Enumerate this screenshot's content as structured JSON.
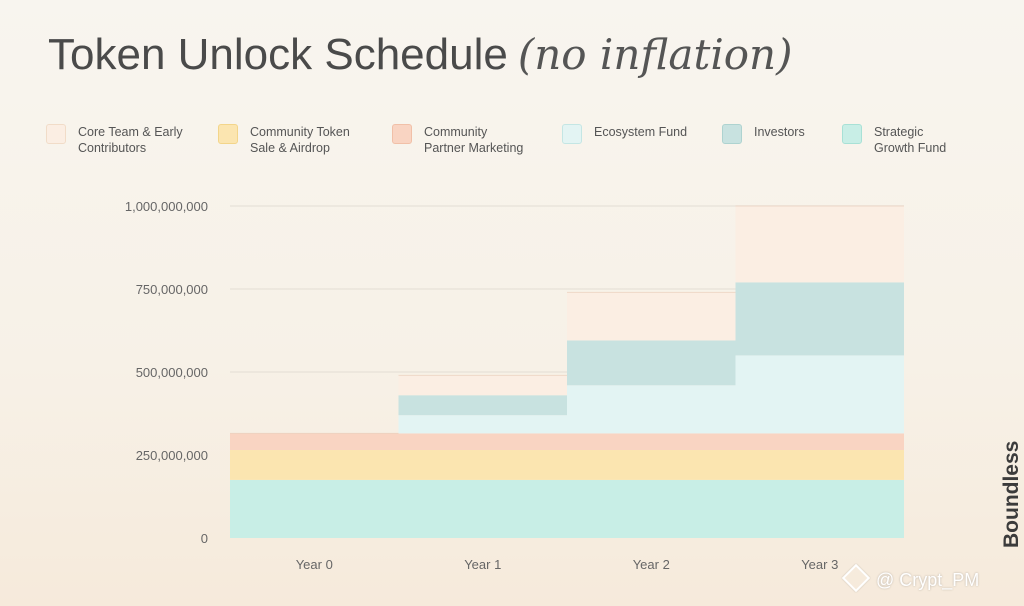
{
  "title": {
    "main": "Token Unlock Schedule",
    "sub": "(no inflation)"
  },
  "legend": [
    {
      "label": "Core Team & Early\nContributors",
      "color": "#fbeee3",
      "border": "#f1dcc8"
    },
    {
      "label": "Community Token\nSale & Airdrop",
      "color": "#fbe5b0",
      "border": "#f3d58a"
    },
    {
      "label": "Community\nPartner Marketing",
      "color": "#f9d4c2",
      "border": "#f1c0a8"
    },
    {
      "label": "Ecosystem Fund",
      "color": "#e3f4f3",
      "border": "#c4e6e4"
    },
    {
      "label": "Investors",
      "color": "#c8e2e0",
      "border": "#aed3d0"
    },
    {
      "label": "Strategic\nGrowth Fund",
      "color": "#c8eee6",
      "border": "#a8e1d6"
    }
  ],
  "chart_data": {
    "type": "area",
    "stacked": true,
    "step": true,
    "categories": [
      "Year 0",
      "Year 1",
      "Year 2",
      "Year 3"
    ],
    "ylim": [
      0,
      1000000000
    ],
    "yticks": [
      0,
      250000000,
      500000000,
      750000000,
      1000000000
    ],
    "ytick_labels": [
      "0",
      "250,000,000",
      "500,000,000",
      "750,000,000",
      "1,000,000,000"
    ],
    "series": [
      {
        "name": "Strategic Growth Fund",
        "color": "#c8eee6",
        "values": [
          175000000,
          175000000,
          175000000,
          175000000
        ]
      },
      {
        "name": "Community Token Sale & Airdrop",
        "color": "#fbe5b0",
        "values": [
          90000000,
          90000000,
          90000000,
          90000000
        ]
      },
      {
        "name": "Community Partner Marketing",
        "color": "#f9d4c2",
        "values": [
          50000000,
          50000000,
          50000000,
          50000000
        ]
      },
      {
        "name": "Ecosystem Fund",
        "color": "#e3f4f3",
        "values": [
          0,
          55000000,
          145000000,
          235000000
        ]
      },
      {
        "name": "Investors",
        "color": "#c8e2e0",
        "values": [
          0,
          60000000,
          135000000,
          220000000
        ]
      },
      {
        "name": "Core Team & Early Contributors",
        "color": "#fbeee3",
        "values": [
          0,
          60000000,
          145000000,
          230000000
        ]
      }
    ]
  },
  "brand": "Boundless",
  "watermark": "@ Crypt_PM"
}
